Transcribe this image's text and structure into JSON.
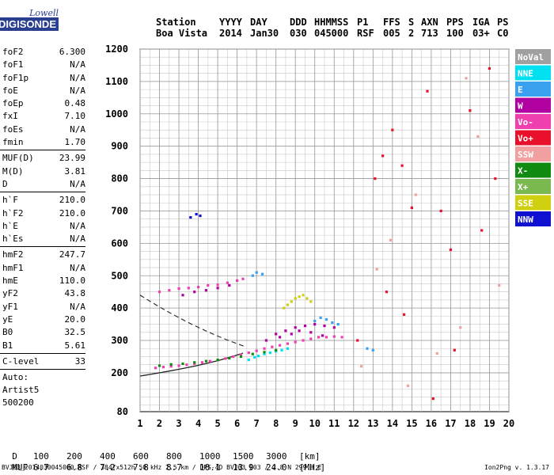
{
  "logo": {
    "line1": "Lowell",
    "line2": "DIGISONDE"
  },
  "header": {
    "labels": [
      "Station",
      "YYYY",
      "DAY",
      "DDD",
      "HHMMSS",
      "P1",
      "FFS",
      "S",
      "AXN",
      "PPS",
      "IGA",
      "PS"
    ],
    "values": [
      "Boa Vista",
      "2014",
      "Jan30",
      "030",
      "045000",
      "RSF",
      "005",
      "2",
      "713",
      "100",
      "03+",
      "C0"
    ]
  },
  "parameters": [
    {
      "name": "foF2",
      "value": "6.300"
    },
    {
      "name": "foF1",
      "value": "N/A"
    },
    {
      "name": "foF1p",
      "value": "N/A"
    },
    {
      "name": "foE",
      "value": "N/A"
    },
    {
      "name": "foEp",
      "value": "0.48"
    },
    {
      "name": "fxI",
      "value": "7.10"
    },
    {
      "name": "foEs",
      "value": "N/A"
    },
    {
      "name": "fmin",
      "value": "1.70"
    },
    {
      "name": "MUF(D)",
      "value": "23.99"
    },
    {
      "name": "M(D)",
      "value": "3.81"
    },
    {
      "name": "D",
      "value": "N/A"
    },
    {
      "name": "h`F",
      "value": "210.0"
    },
    {
      "name": "h`F2",
      "value": "210.0"
    },
    {
      "name": "h`E",
      "value": "N/A"
    },
    {
      "name": "h`Es",
      "value": "N/A"
    },
    {
      "name": "hmF2",
      "value": "247.7"
    },
    {
      "name": "hmF1",
      "value": "N/A"
    },
    {
      "name": "hmE",
      "value": "110.0"
    },
    {
      "name": "yF2",
      "value": "43.8"
    },
    {
      "name": "yF1",
      "value": "N/A"
    },
    {
      "name": "yE",
      "value": "20.0"
    },
    {
      "name": "B0",
      "value": "32.5"
    },
    {
      "name": "B1",
      "value": "5.61"
    },
    {
      "name": "C-level",
      "value": "33"
    }
  ],
  "autoscaling": {
    "label": "Auto:",
    "artist": "Artist5",
    "code": "500200"
  },
  "bottom_table": {
    "d_label": "D",
    "d_values": [
      "100",
      "200",
      "400",
      "600",
      "800",
      "1000",
      "1500",
      "3000",
      "[km]"
    ],
    "muf_label": "MUF",
    "muf_values": [
      "6.7",
      "6.8",
      "7.2",
      "7.8",
      "8.7",
      "10.1",
      "13.9",
      "24.0",
      "[MHz]"
    ]
  },
  "footer": "BVJ03_2014030045000.RSF / 384fx512h 50 kHz 2.5 km / DPS-4D BVJ03 003 / 2.8 N 299.3 E",
  "version": "Ion2Png v. 1.3.17",
  "legend": [
    {
      "name": "NoVal",
      "color": "#a0a0a0"
    },
    {
      "name": "NNE",
      "color": "#00e0f0"
    },
    {
      "name": "E",
      "color": "#3aa0f0"
    },
    {
      "name": "W",
      "color": "#b000a0"
    },
    {
      "name": "Vo-",
      "color": "#f040b0"
    },
    {
      "name": "Vo+",
      "color": "#e8102a"
    },
    {
      "name": "SSW",
      "color": "#f0a0a0"
    },
    {
      "name": "X-",
      "color": "#108a10"
    },
    {
      "name": "X+",
      "color": "#7ab850"
    },
    {
      "name": "SSE",
      "color": "#d0d010"
    },
    {
      "name": "NNW",
      "color": "#1010d0"
    }
  ],
  "chart_data": {
    "type": "scatter",
    "xlim": [
      1,
      20
    ],
    "ylim": [
      80,
      1200
    ],
    "x_ticks": [
      1,
      2,
      3,
      4,
      5,
      6,
      7,
      8,
      9,
      10,
      11,
      12,
      13,
      14,
      15,
      16,
      17,
      18,
      19,
      20
    ],
    "y_ticks": [
      80,
      200,
      300,
      400,
      500,
      600,
      700,
      800,
      900,
      1000,
      1100,
      1200
    ],
    "grid": true,
    "legend_position": "right",
    "series": [
      {
        "name": "Vo-",
        "x": [
          1.8,
          2.2,
          2.6,
          3.0,
          3.4,
          3.8,
          4.2,
          4.6,
          5.0,
          5.4,
          5.8,
          6.2,
          6.6,
          7.0,
          7.4,
          7.8,
          8.2,
          8.6,
          9.0,
          9.4,
          9.8,
          10.2,
          10.6,
          11.0,
          11.4,
          2.0,
          2.5,
          3.0,
          3.5,
          4.0,
          4.5,
          5.0,
          5.5,
          6.0,
          6.3
        ],
        "y": [
          215,
          218,
          220,
          222,
          225,
          228,
          232,
          236,
          240,
          244,
          250,
          256,
          262,
          268,
          275,
          280,
          285,
          290,
          295,
          300,
          305,
          310,
          310,
          312,
          310,
          450,
          455,
          460,
          462,
          465,
          470,
          472,
          478,
          485,
          490
        ]
      },
      {
        "name": "W",
        "x": [
          8.0,
          8.5,
          9.0,
          9.5,
          10.0,
          10.5,
          11.0,
          7.5,
          8.2,
          8.8,
          9.2,
          9.8,
          10.4,
          3.2,
          3.8,
          4.4,
          5.0,
          5.6
        ],
        "y": [
          320,
          330,
          340,
          345,
          350,
          345,
          340,
          300,
          310,
          320,
          330,
          325,
          315,
          440,
          450,
          455,
          462,
          470
        ]
      },
      {
        "name": "SSE",
        "x": [
          8.4,
          8.6,
          8.8,
          9.0,
          9.2,
          9.4,
          9.6,
          9.8
        ],
        "y": [
          400,
          410,
          420,
          430,
          435,
          440,
          430,
          420
        ]
      },
      {
        "name": "E",
        "x": [
          10.0,
          10.3,
          10.6,
          10.9,
          11.2,
          6.8,
          7.0,
          7.3,
          12.7,
          13.0
        ],
        "y": [
          360,
          370,
          365,
          355,
          350,
          500,
          510,
          505,
          275,
          270
        ]
      },
      {
        "name": "NNE",
        "x": [
          6.6,
          6.9,
          7.1,
          7.4,
          7.7,
          8.0,
          8.3,
          8.6
        ],
        "y": [
          240,
          248,
          252,
          258,
          262,
          266,
          270,
          275
        ]
      },
      {
        "name": "X-",
        "x": [
          2.0,
          2.6,
          3.2,
          3.8,
          4.4,
          5.0,
          5.6,
          6.2,
          6.8,
          7.4,
          8.0
        ],
        "y": [
          222,
          226,
          228,
          232,
          236,
          240,
          245,
          250,
          258,
          264,
          270
        ]
      },
      {
        "name": "NNW",
        "x": [
          3.6,
          3.9,
          4.1
        ],
        "y": [
          680,
          690,
          685
        ]
      },
      {
        "name": "Vo+",
        "x": [
          13.1,
          13.5,
          14.0,
          14.5,
          15.0,
          15.8,
          16.5,
          17.0,
          18.0,
          19.0,
          19.3,
          17.2,
          12.2,
          13.7,
          14.6,
          16.1,
          18.6
        ],
        "y": [
          800,
          870,
          950,
          840,
          710,
          1070,
          700,
          580,
          1010,
          1140,
          800,
          270,
          300,
          450,
          380,
          120,
          640
        ]
      },
      {
        "name": "SSW",
        "x": [
          12.4,
          13.2,
          13.9,
          15.2,
          16.3,
          17.8,
          18.4,
          19.5,
          14.8,
          17.5
        ],
        "y": [
          220,
          520,
          610,
          750,
          260,
          1110,
          930,
          470,
          160,
          340
        ]
      }
    ]
  }
}
